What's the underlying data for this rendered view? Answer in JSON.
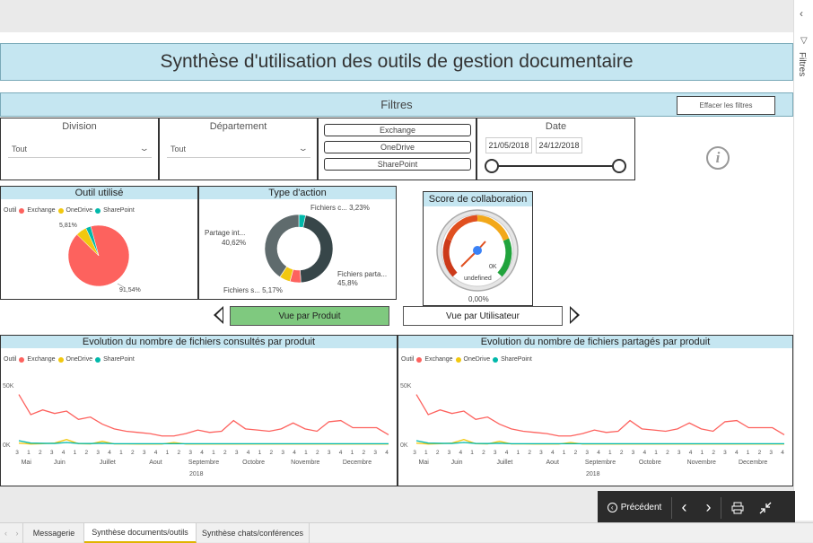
{
  "title": "Synthèse d'utilisation des outils de gestion documentaire",
  "filters": {
    "label": "Filtres",
    "clear_label": "Effacer les filtres",
    "division": {
      "label": "Division",
      "value": "Tout"
    },
    "departement": {
      "label": "Département",
      "value": "Tout"
    },
    "tools": [
      "Exchange",
      "OneDrive",
      "SharePoint"
    ],
    "date": {
      "label": "Date",
      "start": "21/05/2018",
      "end": "24/12/2018"
    }
  },
  "side_pane": {
    "label": "Filtres"
  },
  "outil_chart": {
    "title": "Outil utilisé",
    "legend_title": "Outil",
    "legend": [
      {
        "name": "Exchange",
        "color": "#fd625e"
      },
      {
        "name": "OneDrive",
        "color": "#f2c80f"
      },
      {
        "name": "SharePoint",
        "color": "#01b8aa"
      }
    ],
    "label_small": "5,81%",
    "label_big": "91,54%"
  },
  "action_chart": {
    "title": "Type d'action",
    "label_fichiers_c": "Fichiers c... 3,23%",
    "label_partage_name": "Partage int...",
    "label_partage_val": "40,62%",
    "label_partages_name": "Fichiers parta...",
    "label_partages_val": "45,8%",
    "label_fichiers_s": "Fichiers s... 5,17%"
  },
  "score": {
    "title": "Score de collaboration",
    "gauge_max_label": "0K",
    "gauge_undefined": "undefined",
    "value_label": "0,00%"
  },
  "views": {
    "produit": "Vue par Produit",
    "utilisateur": "Vue par Utilisateur"
  },
  "line_charts": {
    "consultes_title": "Evolution du nombre de fichiers consultés par produit",
    "partages_title": "Evolution du nombre de fichiers partagés par produit",
    "y_top": "50K",
    "y_zero": "0K",
    "months": [
      "Mai",
      "Juin",
      "Juillet",
      "Aout",
      "Septembre",
      "Octobre",
      "Novembre",
      "Decembre"
    ],
    "week_ticks": [
      "3",
      "1",
      "2",
      "3",
      "4",
      "1",
      "2",
      "3",
      "4",
      "1",
      "2",
      "3",
      "4",
      "1",
      "2",
      "3",
      "4",
      "1",
      "2",
      "3",
      "4",
      "1",
      "2",
      "3",
      "4",
      "1",
      "2",
      "3",
      "4",
      "1",
      "2",
      "3",
      "4"
    ],
    "year": "2018"
  },
  "chart_data": [
    {
      "type": "pie",
      "title": "Outil utilisé",
      "categories": [
        "Exchange",
        "OneDrive",
        "SharePoint"
      ],
      "values": [
        91.54,
        5.81,
        2.65
      ]
    },
    {
      "type": "pie",
      "title": "Type d'action",
      "categories": [
        "Fichiers partagés",
        "Partage interne",
        "Fichiers s...",
        "Fichiers c..."
      ],
      "values": [
        45.8,
        40.62,
        5.17,
        3.23
      ]
    },
    {
      "type": "line",
      "title": "Evolution du nombre de fichiers consultés par produit",
      "ylim": [
        0,
        50000
      ],
      "x": [
        1,
        2,
        3,
        4,
        5,
        6,
        7,
        8,
        9,
        10,
        11,
        12,
        13,
        14,
        15,
        16,
        17,
        18,
        19,
        20,
        21,
        22,
        23,
        24,
        25,
        26,
        27,
        28,
        29,
        30,
        31,
        32
      ],
      "series": [
        {
          "name": "Exchange",
          "values": [
            42000,
            25000,
            29000,
            26000,
            28000,
            21000,
            23000,
            17000,
            13000,
            11000,
            10000,
            9000,
            7000,
            7000,
            9000,
            12000,
            10000,
            11000,
            20000,
            13000,
            12000,
            11000,
            13000,
            18000,
            13000,
            11000,
            19000,
            20000,
            14000,
            14000,
            14000,
            8000
          ]
        },
        {
          "name": "OneDrive",
          "values": [
            1000,
            200,
            500,
            1000,
            4000,
            500,
            300,
            2500,
            300,
            300,
            200,
            200,
            200,
            1500,
            200,
            200,
            200,
            200,
            200,
            200,
            200,
            200,
            200,
            200,
            200,
            200,
            200,
            200,
            200,
            200,
            200,
            200
          ]
        },
        {
          "name": "SharePoint",
          "values": [
            3000,
            1000,
            800,
            700,
            1500,
            700,
            600,
            900,
            500,
            500,
            500,
            500,
            500,
            500,
            500,
            500,
            500,
            500,
            500,
            500,
            500,
            500,
            500,
            500,
            500,
            500,
            500,
            500,
            500,
            500,
            500,
            500
          ]
        }
      ]
    },
    {
      "type": "line",
      "title": "Evolution du nombre de fichiers partagés par produit",
      "ylim": [
        0,
        50000
      ],
      "x": [
        1,
        2,
        3,
        4,
        5,
        6,
        7,
        8,
        9,
        10,
        11,
        12,
        13,
        14,
        15,
        16,
        17,
        18,
        19,
        20,
        21,
        22,
        23,
        24,
        25,
        26,
        27,
        28,
        29,
        30,
        31,
        32
      ],
      "series": [
        {
          "name": "Exchange",
          "values": [
            42000,
            25000,
            29000,
            26000,
            28000,
            21000,
            23000,
            17000,
            13000,
            11000,
            10000,
            9000,
            7000,
            7000,
            9000,
            12000,
            10000,
            11000,
            20000,
            13000,
            12000,
            11000,
            13000,
            18000,
            13000,
            11000,
            19000,
            20000,
            14000,
            14000,
            14000,
            8000
          ]
        },
        {
          "name": "OneDrive",
          "values": [
            1000,
            200,
            500,
            1000,
            4000,
            500,
            300,
            2500,
            300,
            300,
            200,
            200,
            200,
            1500,
            200,
            200,
            200,
            200,
            200,
            200,
            200,
            200,
            200,
            200,
            200,
            200,
            200,
            200,
            200,
            200,
            200,
            200
          ]
        },
        {
          "name": "SharePoint",
          "values": [
            3000,
            1000,
            800,
            700,
            1500,
            700,
            600,
            900,
            500,
            500,
            500,
            500,
            500,
            500,
            500,
            500,
            500,
            500,
            500,
            500,
            500,
            500,
            500,
            500,
            500,
            500,
            500,
            500,
            500,
            500,
            500,
            500
          ]
        }
      ]
    }
  ],
  "toolbar": {
    "back_label": "Précédent"
  },
  "tabs": [
    "Messagerie",
    "Synthèse documents/outils",
    "Synthèse chats/conférences"
  ]
}
